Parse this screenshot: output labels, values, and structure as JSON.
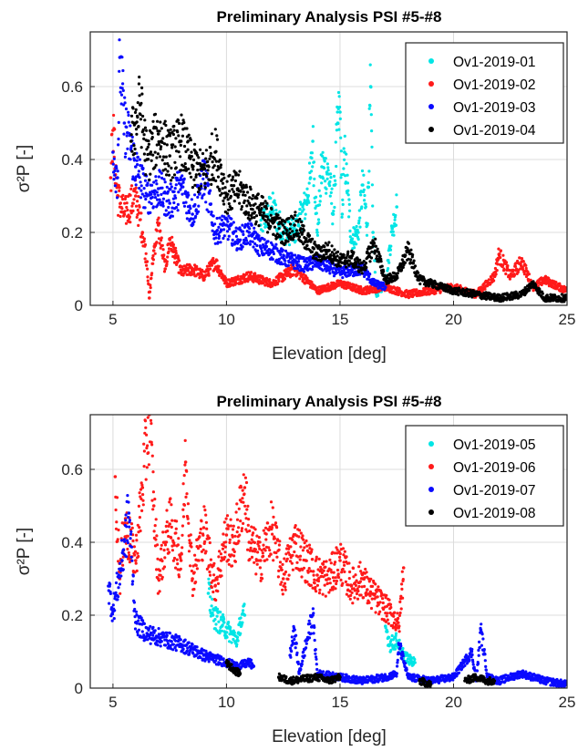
{
  "chart_data": [
    {
      "type": "scatter",
      "title": "Preliminary Analysis PSI #5-#8",
      "xlabel": "Elevation [deg]",
      "ylabel": "σ²P [-]",
      "xlim": [
        4,
        25
      ],
      "ylim": [
        0,
        0.75
      ],
      "xticks": [
        "5",
        "10",
        "15",
        "20",
        "25"
      ],
      "yticks": [
        "0",
        "0.2",
        "0.4",
        "0.6"
      ],
      "grid": true,
      "legend_position": "top-right",
      "series": [
        {
          "name": "Ov1-2019-01",
          "color": "#00e5e5",
          "points": [
            [
              11.5,
              0.22
            ],
            [
              12,
              0.27
            ],
            [
              12.5,
              0.2
            ],
            [
              13,
              0.2
            ],
            [
              13.5,
              0.28
            ],
            [
              13.7,
              0.35
            ],
            [
              13.8,
              0.45
            ],
            [
              14,
              0.2
            ],
            [
              14.2,
              0.38
            ],
            [
              14.5,
              0.36
            ],
            [
              14.7,
              0.25
            ],
            [
              14.9,
              0.5
            ],
            [
              15,
              0.53
            ],
            [
              15.1,
              0.25
            ],
            [
              15.2,
              0.42
            ],
            [
              15.5,
              0.18
            ],
            [
              15.8,
              0.2
            ],
            [
              16,
              0.33
            ],
            [
              16.2,
              0.22
            ],
            [
              16.35,
              0.6
            ],
            [
              16.45,
              0.2
            ],
            [
              16.6,
              0.03
            ],
            [
              17,
              0.06
            ],
            [
              17.3,
              0.21
            ],
            [
              17.5,
              0.27
            ]
          ]
        },
        {
          "name": "Ov1-2019-02",
          "color": "#ff1a1a",
          "points": [
            [
              4.9,
              0.35
            ],
            [
              5,
              0.48
            ],
            [
              5.2,
              0.3
            ],
            [
              5.5,
              0.25
            ],
            [
              6,
              0.3
            ],
            [
              6.3,
              0.2
            ],
            [
              6.5,
              0.12
            ],
            [
              6.6,
              0.02
            ],
            [
              6.8,
              0.15
            ],
            [
              7,
              0.22
            ],
            [
              7.3,
              0.1
            ],
            [
              7.5,
              0.18
            ],
            [
              8,
              0.09
            ],
            [
              8.5,
              0.1
            ],
            [
              9,
              0.08
            ],
            [
              9.5,
              0.12
            ],
            [
              10,
              0.06
            ],
            [
              11,
              0.08
            ],
            [
              12,
              0.06
            ],
            [
              13,
              0.1
            ],
            [
              14,
              0.04
            ],
            [
              15,
              0.06
            ],
            [
              16,
              0.04
            ],
            [
              17,
              0.05
            ],
            [
              18,
              0.03
            ],
            [
              19,
              0.04
            ],
            [
              20,
              0.05
            ],
            [
              21,
              0.03
            ],
            [
              21.8,
              0.08
            ],
            [
              22,
              0.14
            ],
            [
              22.5,
              0.08
            ],
            [
              23,
              0.12
            ],
            [
              23.5,
              0.05
            ],
            [
              24,
              0.07
            ],
            [
              25,
              0.04
            ]
          ]
        },
        {
          "name": "Ov1-2019-03",
          "color": "#0a0aff",
          "points": [
            [
              5,
              0.42
            ],
            [
              5.2,
              0.35
            ],
            [
              5.3,
              0.68
            ],
            [
              5.5,
              0.5
            ],
            [
              6,
              0.38
            ],
            [
              6.5,
              0.3
            ],
            [
              7,
              0.32
            ],
            [
              7.5,
              0.28
            ],
            [
              8,
              0.33
            ],
            [
              8.5,
              0.25
            ],
            [
              9,
              0.36
            ],
            [
              9.5,
              0.2
            ],
            [
              10,
              0.22
            ],
            [
              10.5,
              0.18
            ],
            [
              11,
              0.2
            ],
            [
              11.5,
              0.16
            ],
            [
              12,
              0.15
            ],
            [
              12.5,
              0.13
            ],
            [
              13,
              0.12
            ],
            [
              13.5,
              0.11
            ],
            [
              14,
              0.12
            ],
            [
              15,
              0.09
            ],
            [
              16,
              0.1
            ],
            [
              16.5,
              0.06
            ],
            [
              17,
              0.05
            ]
          ]
        },
        {
          "name": "Ov1-2019-04",
          "color": "#000000",
          "points": [
            [
              5.8,
              0.45
            ],
            [
              6,
              0.5
            ],
            [
              6.2,
              0.55
            ],
            [
              6.5,
              0.4
            ],
            [
              7,
              0.47
            ],
            [
              7.5,
              0.41
            ],
            [
              8,
              0.45
            ],
            [
              8.5,
              0.38
            ],
            [
              9,
              0.36
            ],
            [
              9.5,
              0.42
            ],
            [
              10,
              0.3
            ],
            [
              10.5,
              0.32
            ],
            [
              11,
              0.28
            ],
            [
              11.5,
              0.26
            ],
            [
              12,
              0.23
            ],
            [
              12.5,
              0.2
            ],
            [
              13,
              0.22
            ],
            [
              13.5,
              0.18
            ],
            [
              14,
              0.14
            ],
            [
              14.5,
              0.15
            ],
            [
              15,
              0.12
            ],
            [
              15.5,
              0.13
            ],
            [
              16,
              0.1
            ],
            [
              16.5,
              0.17
            ],
            [
              17,
              0.07
            ],
            [
              17.5,
              0.08
            ],
            [
              18,
              0.15
            ],
            [
              18.5,
              0.07
            ],
            [
              19,
              0.06
            ],
            [
              20,
              0.04
            ],
            [
              21,
              0.03
            ],
            [
              22,
              0.02
            ],
            [
              23,
              0.03
            ],
            [
              23.5,
              0.06
            ],
            [
              24,
              0.02
            ],
            [
              25,
              0.02
            ]
          ]
        }
      ]
    },
    {
      "type": "scatter",
      "title": "Preliminary Analysis PSI #5-#8",
      "xlabel": "Elevation [deg]",
      "ylabel": "σ²P [-]",
      "xlim": [
        4,
        25
      ],
      "ylim": [
        0,
        0.75
      ],
      "xticks": [
        "5",
        "10",
        "15",
        "20",
        "25"
      ],
      "yticks": [
        "0",
        "0.2",
        "0.4",
        "0.6"
      ],
      "grid": true,
      "legend_position": "top-right",
      "series": [
        {
          "name": "Ov1-2019-05",
          "color": "#00e5e5",
          "points": [
            [
              9.2,
              0.26
            ],
            [
              9.4,
              0.2
            ],
            [
              10.5,
              0.13
            ],
            [
              10.6,
              0.18
            ],
            [
              10.8,
              0.2
            ],
            [
              17,
              0.17
            ],
            [
              17.2,
              0.12
            ],
            [
              17.5,
              0.13
            ],
            [
              17.7,
              0.1
            ],
            [
              18,
              0.08
            ],
            [
              18.3,
              0.07
            ]
          ]
        },
        {
          "name": "Ov1-2019-06",
          "color": "#ff1a1a",
          "points": [
            [
              5.1,
              0.58
            ],
            [
              5.3,
              0.3
            ],
            [
              5.5,
              0.45
            ],
            [
              6,
              0.35
            ],
            [
              6.3,
              0.55
            ],
            [
              6.6,
              0.75
            ],
            [
              6.8,
              0.5
            ],
            [
              7,
              0.3
            ],
            [
              7.3,
              0.4
            ],
            [
              7.5,
              0.45
            ],
            [
              8,
              0.35
            ],
            [
              8.2,
              0.62
            ],
            [
              8.5,
              0.3
            ],
            [
              9,
              0.44
            ],
            [
              9.5,
              0.28
            ],
            [
              10,
              0.42
            ],
            [
              10.3,
              0.38
            ],
            [
              10.8,
              0.55
            ],
            [
              11,
              0.4
            ],
            [
              11.5,
              0.35
            ],
            [
              12,
              0.44
            ],
            [
              12.5,
              0.3
            ],
            [
              13,
              0.4
            ],
            [
              13.5,
              0.35
            ],
            [
              14,
              0.31
            ],
            [
              14.5,
              0.3
            ],
            [
              15,
              0.35
            ],
            [
              15.5,
              0.28
            ],
            [
              16,
              0.3
            ],
            [
              16.2,
              0.27
            ],
            [
              17.3,
              0.2
            ],
            [
              17.6,
              0.17
            ],
            [
              17.8,
              0.33
            ]
          ]
        },
        {
          "name": "Ov1-2019-07",
          "color": "#0a0aff",
          "points": [
            [
              4.8,
              0.28
            ],
            [
              5,
              0.21
            ],
            [
              5.4,
              0.35
            ],
            [
              5.7,
              0.48
            ],
            [
              6,
              0.18
            ],
            [
              6.5,
              0.15
            ],
            [
              7,
              0.14
            ],
            [
              8,
              0.12
            ],
            [
              9,
              0.09
            ],
            [
              10,
              0.07
            ],
            [
              10.5,
              0.06
            ],
            [
              11,
              0.07
            ],
            [
              11.2,
              0.06
            ],
            [
              12.8,
              0.09
            ],
            [
              13,
              0.16
            ],
            [
              13.2,
              0.04
            ],
            [
              13.8,
              0.2
            ],
            [
              14,
              0.04
            ],
            [
              15,
              0.03
            ],
            [
              16,
              0.02
            ],
            [
              17,
              0.03
            ],
            [
              17.5,
              0.04
            ],
            [
              17.6,
              0.12
            ],
            [
              18,
              0.03
            ],
            [
              19,
              0.02
            ],
            [
              20,
              0.03
            ],
            [
              20.8,
              0.1
            ],
            [
              21,
              0.02
            ],
            [
              21.2,
              0.16
            ],
            [
              21.5,
              0.03
            ],
            [
              22,
              0.02
            ],
            [
              23,
              0.04
            ],
            [
              24,
              0.02
            ],
            [
              25,
              0.01
            ]
          ]
        },
        {
          "name": "Ov1-2019-08",
          "color": "#000000",
          "points": [
            [
              10,
              0.07
            ],
            [
              10.3,
              0.05
            ],
            [
              10.6,
              0.04
            ],
            [
              12.3,
              0.03
            ],
            [
              12.8,
              0.02
            ],
            [
              14,
              0.03
            ],
            [
              14.5,
              0.02
            ],
            [
              15,
              0.03
            ],
            [
              18.5,
              0.02
            ],
            [
              19,
              0.01
            ],
            [
              20.5,
              0.02
            ],
            [
              21,
              0.03
            ],
            [
              21.5,
              0.02
            ],
            [
              21.8,
              0.02
            ]
          ]
        }
      ]
    }
  ]
}
